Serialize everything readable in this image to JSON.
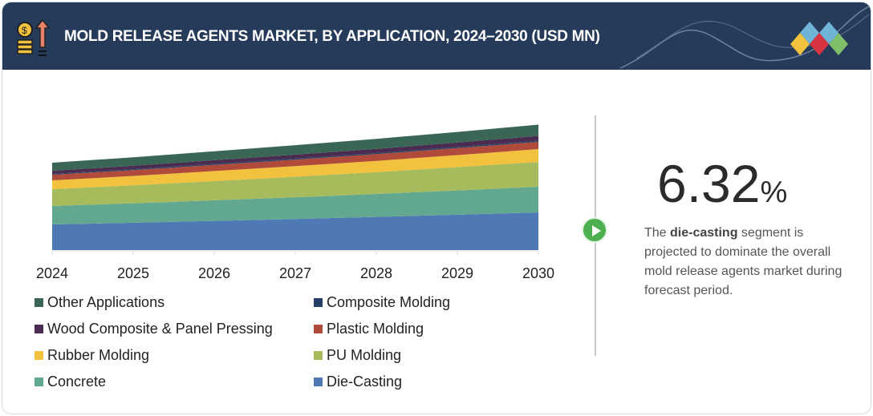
{
  "header": {
    "title": "MOLD RELEASE AGENTS MARKET, BY APPLICATION, 2024–2030 (USD MN)",
    "icon": "money-growth-icon",
    "logo": "diamond-logo"
  },
  "highlight": {
    "value": "6.32",
    "unit": "%",
    "text_pre": "The ",
    "text_bold": "die-casting",
    "text_post": " segment is projected to dominate the overall mold release agents market during forecast period.",
    "icon": "play-circle-icon",
    "accent": "#4caf50"
  },
  "chart_data": {
    "type": "area",
    "stacked": true,
    "title": "",
    "xlabel": "",
    "ylabel": "",
    "x": [
      "2024",
      "2025",
      "2026",
      "2027",
      "2028",
      "2029",
      "2030"
    ],
    "ylim": [
      0,
      160
    ],
    "grid": false,
    "legend_position": "bottom",
    "series": [
      {
        "name": "Die-Casting",
        "color": "#4f79b4",
        "values": [
          32,
          34.1,
          36.4,
          38.8,
          41.4,
          44.1,
          47
        ]
      },
      {
        "name": "Concrete",
        "color": "#62a890",
        "values": [
          23,
          24.3,
          25.7,
          27.1,
          28.6,
          30.3,
          32
        ]
      },
      {
        "name": "PU Molding",
        "color": "#a6bb5c",
        "values": [
          21,
          22.4,
          24,
          25.6,
          27.2,
          29.1,
          31
        ]
      },
      {
        "name": "Rubber Molding",
        "color": "#f2c13e",
        "values": [
          11,
          11.7,
          12.5,
          13.3,
          14.1,
          15,
          16
        ]
      },
      {
        "name": "Plastic Molding",
        "color": "#b04a3a",
        "values": [
          7,
          7.3,
          7.7,
          8,
          8.4,
          8.7,
          9
        ]
      },
      {
        "name": "Composite Molding",
        "color": "#263f66",
        "values": [
          1,
          1.1,
          1.2,
          1.3,
          1.3,
          1.4,
          1.5
        ]
      },
      {
        "name": "Wood Composite & Panel Pressing",
        "color": "#4a2c50",
        "values": [
          4,
          4.3,
          4.6,
          5,
          5.3,
          5.6,
          6
        ]
      },
      {
        "name": "Other Applications",
        "color": "#3a6655",
        "values": [
          10,
          10.6,
          11.2,
          11.8,
          12.5,
          13.2,
          14
        ]
      }
    ],
    "legend_order": [
      "Other Applications",
      "Composite Molding",
      "Wood Composite & Panel Pressing",
      "Plastic Molding",
      "Rubber Molding",
      "PU Molding",
      "Concrete",
      "Die-Casting"
    ]
  }
}
